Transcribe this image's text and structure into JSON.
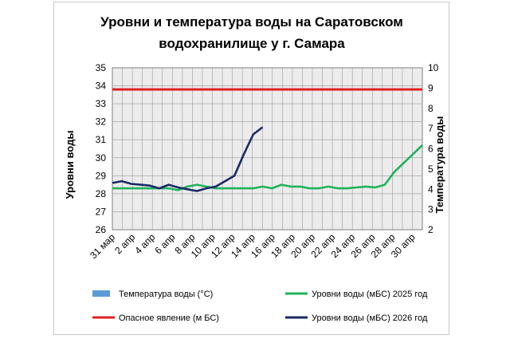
{
  "chart_data": {
    "type": "line",
    "title_line1": "Уровни и температура  воды на Саратовском",
    "title_line2": "водохранилище у  г. Самара",
    "ylabel_left": "Уровни воды",
    "ylabel_right": "Температура воды",
    "ylim_left": [
      26,
      35
    ],
    "ylim_right": [
      2,
      10
    ],
    "yticks_left": [
      "26",
      "27",
      "28",
      "29",
      "30",
      "31",
      "32",
      "33",
      "34",
      "35"
    ],
    "yticks_right": [
      "2",
      "3",
      "4",
      "5",
      "6",
      "7",
      "8",
      "9",
      "10"
    ],
    "x_tick_labels": [
      "31 мар",
      "2 апр",
      "4 апр",
      "6 апр",
      "8 апр",
      "10 апр",
      "12 апр",
      "14 апр",
      "16 апр",
      "18 апр",
      "20 апр",
      "22 апр",
      "24 апр",
      "26 апр",
      "28 апр",
      "30 апр"
    ],
    "x_days": 31,
    "grid": true,
    "series": [
      {
        "name": "Температура воды (°C)",
        "axis": "right",
        "color": "#5b9bd5",
        "values": []
      },
      {
        "name": "Уровни воды (мБС) 2025 год",
        "axis": "left",
        "color": "#1fb35a",
        "values": [
          28.3,
          28.3,
          28.3,
          28.3,
          28.3,
          28.3,
          28.3,
          28.2,
          28.4,
          28.5,
          28.4,
          28.3,
          28.3,
          28.3,
          28.3,
          28.3,
          28.4,
          28.3,
          28.5,
          28.4,
          28.4,
          28.3,
          28.3,
          28.4,
          28.3,
          28.3,
          28.35,
          28.4,
          28.35,
          28.5,
          29.2,
          29.7,
          30.2,
          30.7
        ]
      },
      {
        "name": "Опасное явление    (м БС)",
        "axis": "left",
        "color": "#e02020",
        "values": [
          33.8,
          33.8,
          33.8,
          33.8,
          33.8,
          33.8,
          33.8,
          33.8,
          33.8,
          33.8,
          33.8,
          33.8,
          33.8,
          33.8,
          33.8,
          33.8,
          33.8,
          33.8,
          33.8,
          33.8,
          33.8,
          33.8,
          33.8,
          33.8,
          33.8,
          33.8,
          33.8,
          33.8,
          33.8,
          33.8,
          33.8,
          33.8,
          33.8,
          33.8
        ]
      },
      {
        "name": "Уровни воды (мБС) 2026 год",
        "axis": "left",
        "color": "#1a2a66",
        "values": [
          28.6,
          28.7,
          28.55,
          28.5,
          28.45,
          28.3,
          28.5,
          28.35,
          28.25,
          28.15,
          28.3,
          28.4,
          28.7,
          29.0,
          30.2,
          31.3,
          31.7
        ]
      }
    ],
    "legend": [
      {
        "label": "Температура воды (°C)",
        "color": "#5b9bd5",
        "kind": "box"
      },
      {
        "label": "Уровни воды (мБС) 2025 год",
        "color": "#1fb35a",
        "kind": "line"
      },
      {
        "label": "Опасное явление    (м БС)",
        "color": "#e02020",
        "kind": "line"
      },
      {
        "label": "Уровни воды (мБС) 2026 год",
        "color": "#1a2a66",
        "kind": "line"
      }
    ]
  }
}
